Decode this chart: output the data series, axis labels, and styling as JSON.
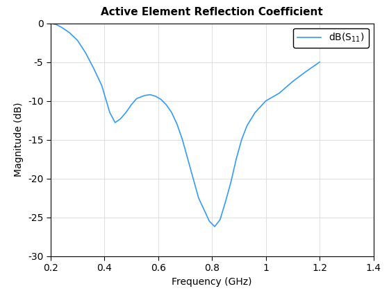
{
  "title": "Active Element Reflection Coefficient",
  "xlabel": "Frequency (GHz)",
  "ylabel": "Magnitude (dB)",
  "legend_label": "dB(S_{11})",
  "line_color": "#3399FF",
  "xlim": [
    0.2,
    1.4
  ],
  "ylim": [
    -30,
    0
  ],
  "xticks": [
    0.2,
    0.4,
    0.6,
    0.8,
    1.0,
    1.2,
    1.4
  ],
  "yticks": [
    0,
    -5,
    -10,
    -15,
    -20,
    -25,
    -30
  ],
  "ytick_labels": [
    "0",
    "-5",
    "-10",
    "-15",
    "-20",
    "-25",
    "-30"
  ],
  "xtick_labels": [
    "0.2",
    "0.4",
    "0.6",
    "0.8",
    "1",
    "1.2",
    "1.4"
  ],
  "x": [
    0.2,
    0.22,
    0.24,
    0.27,
    0.3,
    0.33,
    0.36,
    0.39,
    0.42,
    0.44,
    0.46,
    0.48,
    0.5,
    0.52,
    0.55,
    0.57,
    0.59,
    0.61,
    0.63,
    0.65,
    0.67,
    0.69,
    0.71,
    0.73,
    0.75,
    0.77,
    0.79,
    0.81,
    0.83,
    0.85,
    0.87,
    0.89,
    0.91,
    0.93,
    0.96,
    1.0,
    1.05,
    1.1,
    1.15,
    1.2
  ],
  "y": [
    -0.02,
    -0.15,
    -0.5,
    -1.2,
    -2.2,
    -3.8,
    -5.8,
    -8.0,
    -11.5,
    -12.8,
    -12.3,
    -11.5,
    -10.5,
    -9.7,
    -9.3,
    -9.2,
    -9.4,
    -9.8,
    -10.5,
    -11.5,
    -13.0,
    -15.0,
    -17.5,
    -20.0,
    -22.5,
    -24.0,
    -25.5,
    -26.2,
    -25.3,
    -23.0,
    -20.5,
    -17.5,
    -15.0,
    -13.2,
    -11.5,
    -10.0,
    -9.0,
    -7.5,
    -6.2,
    -5.0
  ],
  "figure_facecolor": "#ffffff",
  "axes_facecolor": "#ffffff",
  "grid_color": "#e0e0e0"
}
